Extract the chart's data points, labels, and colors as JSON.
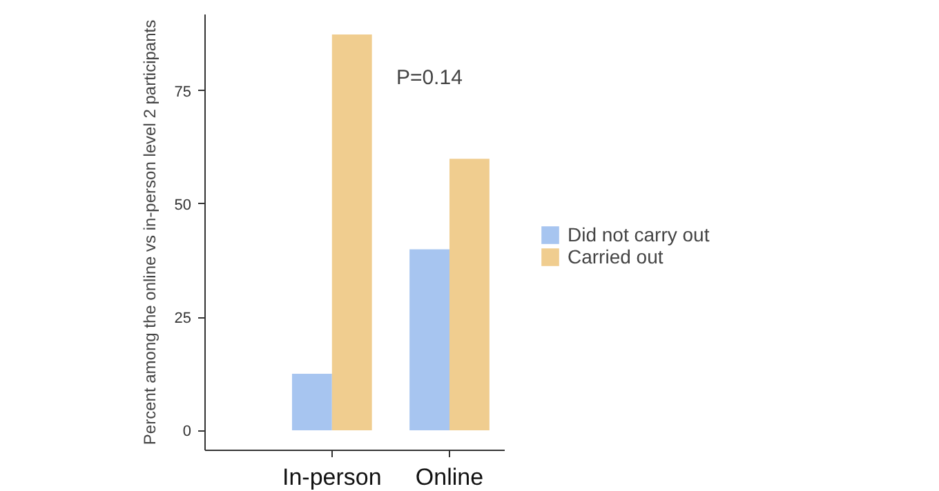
{
  "chart_data": {
    "type": "bar",
    "categories": [
      "In-person",
      "Online"
    ],
    "series": [
      {
        "name": "Did not carry out",
        "color": "#a7c5f0",
        "values": [
          12.5,
          40
        ]
      },
      {
        "name": "Carried out",
        "color": "#f0cd8f",
        "values": [
          87.5,
          60
        ]
      }
    ],
    "ylabel": "Percent among the online vs in-person level 2 participants",
    "ylim": [
      -4.4,
      91.9
    ],
    "yticks": [
      0,
      25,
      50,
      75
    ],
    "annotations": [
      "P=0.14"
    ],
    "grid": false,
    "legend": "right"
  }
}
